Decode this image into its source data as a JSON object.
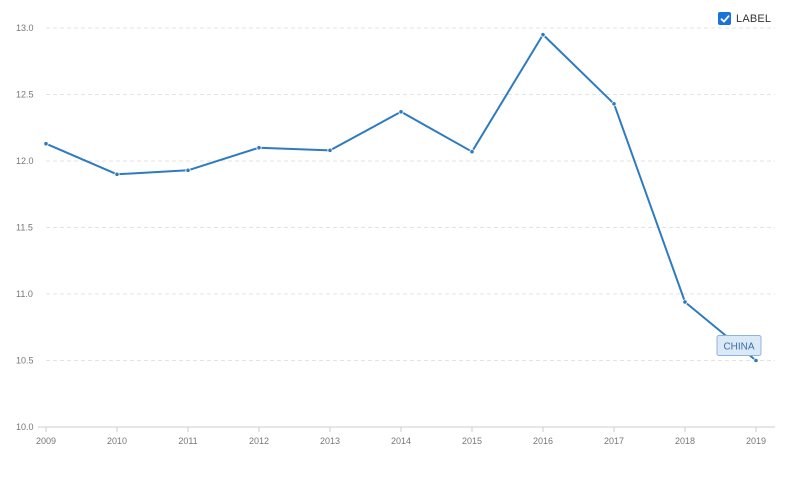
{
  "legend": {
    "label": "LABEL",
    "checked": true,
    "checkbox_color": "#1a73d9"
  },
  "colors": {
    "line": "#2e7bbf",
    "grid": "#e3e3e3",
    "tag_fill": "#dbe9f7",
    "tag_stroke": "#8fb4dc"
  },
  "chart_data": {
    "type": "line",
    "title": "",
    "xlabel": "",
    "ylabel": "",
    "x": [
      "2009",
      "2010",
      "2011",
      "2012",
      "2013",
      "2014",
      "2015",
      "2016",
      "2017",
      "2018",
      "2019"
    ],
    "series": [
      {
        "name": "CHINA",
        "values": [
          12.13,
          11.9,
          11.93,
          12.1,
          12.08,
          12.37,
          12.07,
          12.95,
          12.43,
          10.94,
          10.5
        ]
      }
    ],
    "ylim": [
      10.0,
      13.0
    ],
    "yticks": [
      "10.0",
      "10.5",
      "11.0",
      "11.5",
      "12.0",
      "12.5",
      "13.0"
    ],
    "grid": true,
    "legend_position": "top-right",
    "end_label": "CHINA"
  }
}
